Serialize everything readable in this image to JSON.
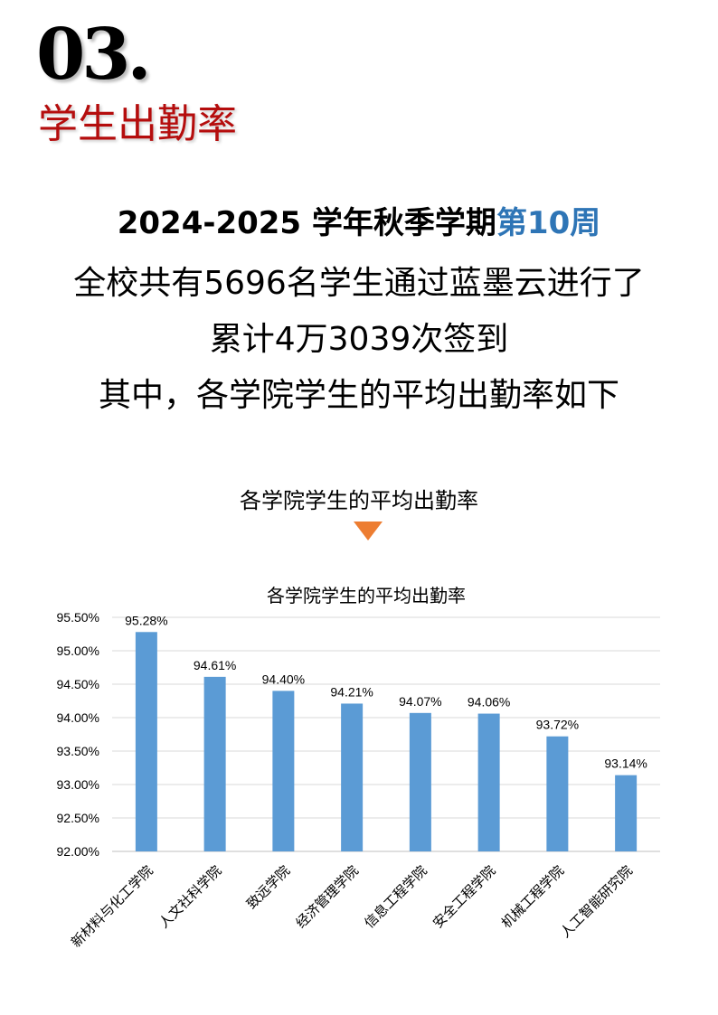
{
  "section": {
    "number": "03.",
    "title": "学生出勤率"
  },
  "summary": {
    "line1_prefix": "2024-2025 学年秋季学期",
    "line1_highlight": "第10周",
    "line2": "全校共有5696名学生通过蓝墨云进行了",
    "line3": "累计4万3039次签到",
    "line4": "其中，各学院学生的平均出勤率如下"
  },
  "chart_heading": "各学院学生的平均出勤率",
  "colors": {
    "accent": "#b50d0d",
    "highlight": "#2e75b6",
    "bar": "#5b9bd5",
    "arrow": "#ed7d31"
  },
  "chart_data": {
    "type": "bar",
    "title": "各学院学生的平均出勤率",
    "categories": [
      "新材料与化工学院",
      "人文社科学院",
      "致远学院",
      "经济管理学院",
      "信息工程学院",
      "安全工程学院",
      "机械工程学院",
      "人工智能研究院"
    ],
    "values": [
      95.28,
      94.61,
      94.4,
      94.21,
      94.07,
      94.06,
      93.72,
      93.14
    ],
    "data_labels": [
      "95.28%",
      "94.61%",
      "94.40%",
      "94.21%",
      "94.07%",
      "94.06%",
      "93.72%",
      "93.14%"
    ],
    "ylim": [
      92,
      95.5
    ],
    "yticks": [
      "92.00%",
      "92.50%",
      "93.00%",
      "93.50%",
      "94.00%",
      "94.50%",
      "95.00%",
      "95.50%"
    ],
    "grid": true
  }
}
